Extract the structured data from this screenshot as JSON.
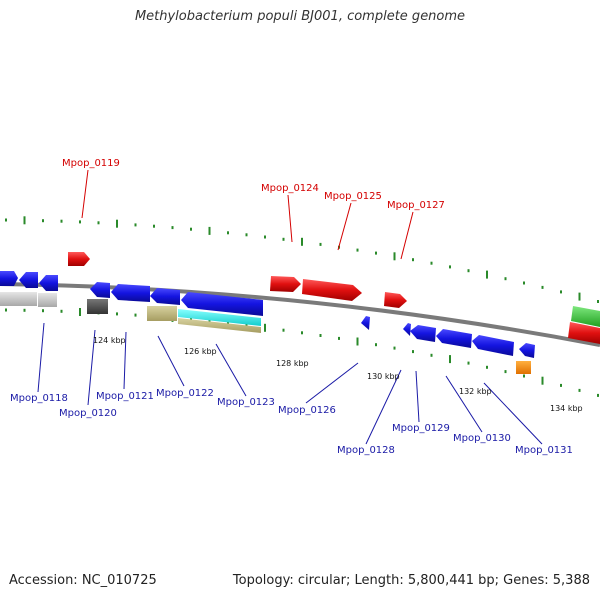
{
  "title": "Methylobacterium populi BJ001, complete genome",
  "footer": {
    "accession": "Accession: NC_010725",
    "summary": "Topology: circular; Length: 5,800,441 bp; Genes: 5,388"
  },
  "scale_labels": [
    "124 kbp",
    "126 kbp",
    "128 kbp",
    "130 kbp",
    "132 kbp",
    "134 kbp"
  ],
  "genes_top": [
    "Mpop_0119",
    "Mpop_0124",
    "Mpop_0125",
    "Mpop_0127"
  ],
  "genes_bottom": [
    "Mpop_0118",
    "Mpop_0120",
    "Mpop_0121",
    "Mpop_0122",
    "Mpop_0123",
    "Mpop_0126",
    "Mpop_0128",
    "Mpop_0129",
    "Mpop_0130",
    "Mpop_0131"
  ],
  "colors": {
    "forward_gene": "#e01010",
    "reverse_gene": "#1414e0",
    "backbone": "#888888",
    "tick": "#2a8a2a",
    "top_label": "#d40000",
    "bottom_label": "#1a1aa6"
  }
}
